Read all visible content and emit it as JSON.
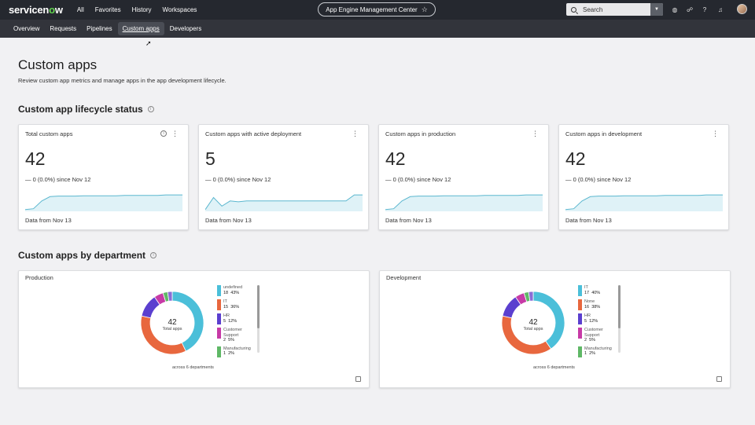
{
  "brand": {
    "logo_pre": "servicen",
    "logo_o": "o",
    "logo_post": "w"
  },
  "topnav": {
    "all": "All",
    "favorites": "Favorites",
    "history": "History",
    "workspaces": "Workspaces"
  },
  "app_title": "App Engine Management Center",
  "search": {
    "label": "Search"
  },
  "subnav": [
    "Overview",
    "Requests",
    "Pipelines",
    "Custom apps",
    "Developers"
  ],
  "page": {
    "title": "Custom apps",
    "subtitle": "Review custom app metrics and manage apps in the app development lifecycle."
  },
  "sections": {
    "lifecycle": "Custom app lifecycle status",
    "department": "Custom apps by department"
  },
  "kpis": [
    {
      "title": "Total custom apps",
      "value": "42",
      "delta": "0 (0.0%) since Nov 12",
      "footer": "Data from Nov 13",
      "trend": [
        0.1,
        0.15,
        0.6,
        0.85,
        0.88,
        0.88,
        0.88,
        0.9,
        0.9,
        0.9,
        0.9,
        0.9,
        0.92,
        0.92,
        0.92,
        0.92,
        0.92,
        0.95,
        0.95,
        0.95
      ]
    },
    {
      "title": "Custom apps with active deployment",
      "value": "5",
      "delta": "0 (0.0%) since Nov 12",
      "footer": "Data from Nov 13",
      "trend": [
        0.1,
        0.8,
        0.3,
        0.6,
        0.55,
        0.6,
        0.6,
        0.6,
        0.6,
        0.6,
        0.6,
        0.6,
        0.6,
        0.6,
        0.6,
        0.6,
        0.6,
        0.6,
        0.95,
        0.95
      ]
    },
    {
      "title": "Custom apps in production",
      "value": "42",
      "delta": "0 (0.0%) since Nov 12",
      "footer": "Data from Nov 13",
      "trend": [
        0.1,
        0.15,
        0.6,
        0.85,
        0.88,
        0.88,
        0.88,
        0.9,
        0.9,
        0.9,
        0.9,
        0.9,
        0.92,
        0.92,
        0.92,
        0.92,
        0.92,
        0.95,
        0.95,
        0.95
      ]
    },
    {
      "title": "Custom apps in development",
      "value": "42",
      "delta": "0 (0.0%) since Nov 12",
      "footer": "Data from Nov 13",
      "trend": [
        0.1,
        0.15,
        0.6,
        0.85,
        0.88,
        0.88,
        0.88,
        0.9,
        0.9,
        0.9,
        0.9,
        0.9,
        0.92,
        0.92,
        0.92,
        0.92,
        0.92,
        0.95,
        0.95,
        0.95
      ]
    }
  ],
  "departments": [
    {
      "title": "Production",
      "total": "42",
      "total_label": "Total apps",
      "across": "across 6 departments",
      "slices": [
        {
          "label": "undefined",
          "count": "18",
          "pct": "43%",
          "value": 18,
          "color": "#4bbfd9"
        },
        {
          "label": "IT",
          "count": "15",
          "pct": "36%",
          "value": 15,
          "color": "#e8673e"
        },
        {
          "label": "HR",
          "count": "5",
          "pct": "12%",
          "value": 5,
          "color": "#5b3fcf"
        },
        {
          "label": "Customer Support",
          "count": "2",
          "pct": "5%",
          "value": 2,
          "color": "#c73aa6"
        },
        {
          "label": "Manufacturing",
          "count": "1",
          "pct": "2%",
          "value": 1,
          "color": "#5fb866"
        }
      ],
      "extra_slices": [
        {
          "value": 1,
          "color": "#8a6dd6"
        }
      ]
    },
    {
      "title": "Development",
      "total": "42",
      "total_label": "Total apps",
      "across": "across 6 departments",
      "slices": [
        {
          "label": "IT",
          "count": "17",
          "pct": "40%",
          "value": 17,
          "color": "#4bbfd9"
        },
        {
          "label": "None",
          "count": "16",
          "pct": "38%",
          "value": 16,
          "color": "#e8673e"
        },
        {
          "label": "HR",
          "count": "5",
          "pct": "12%",
          "value": 5,
          "color": "#5b3fcf"
        },
        {
          "label": "Customer Support",
          "count": "2",
          "pct": "5%",
          "value": 2,
          "color": "#c73aa6"
        },
        {
          "label": "Manufacturing",
          "count": "1",
          "pct": "2%",
          "value": 1,
          "color": "#5fb866"
        }
      ],
      "extra_slices": [
        {
          "value": 1,
          "color": "#8a6dd6"
        }
      ]
    }
  ],
  "colors": {
    "spark": "#5bb7cf",
    "spark_fill": "#dff2f7"
  }
}
